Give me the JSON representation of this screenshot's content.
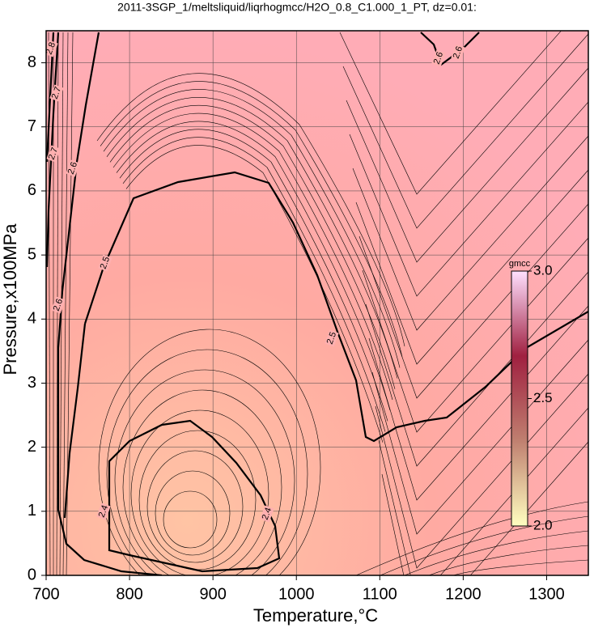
{
  "chart_data": {
    "type": "contour",
    "title": "2011-3SGP_1/meltsliquid/liqrhogmcc/H2O_0.8_C1.000_1_PT, dz=0.01:",
    "x_label": "Temperature,°C",
    "y_label": "Pressure,x100MPa",
    "xlim": [
      700,
      1350
    ],
    "ylim": [
      0,
      8.5
    ],
    "xticks": [
      700,
      800,
      900,
      1000,
      1100,
      1200,
      1300
    ],
    "yticks": [
      0,
      1,
      2,
      3,
      4,
      5,
      6,
      7,
      8
    ],
    "grid": true,
    "contour_levels": [
      2.4,
      2.5,
      2.6,
      2.7,
      2.8
    ],
    "contour_labels": [
      2.4,
      2.4,
      2.5,
      2.5,
      2.6,
      2.6,
      2.6,
      2.6,
      2.7,
      2.7,
      2.8
    ],
    "colorbar": {
      "label": "gmcc",
      "lim": [
        2.0,
        3.0
      ],
      "ticks": [
        {
          "value": 2.0,
          "label": "2.0"
        },
        2.5,
        {
          "value": 3.0,
          "label": "3.0"
        }
      ],
      "colors": [
        "#ffffc0",
        "#c08070",
        "#a02040",
        "#ffe0ff"
      ]
    }
  }
}
